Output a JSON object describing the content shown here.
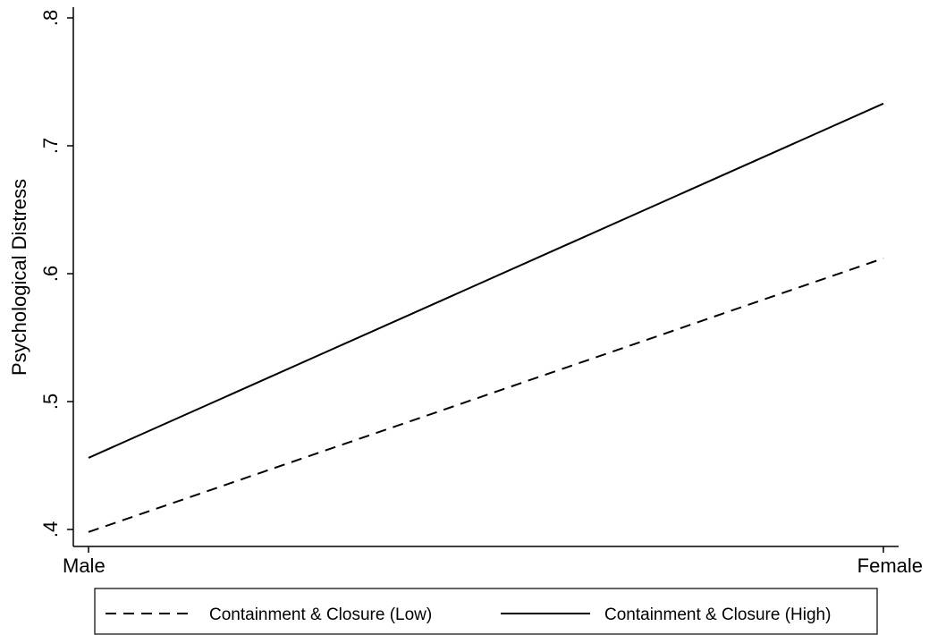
{
  "chart_data": {
    "type": "line",
    "title": "",
    "xlabel": "",
    "ylabel": "Psychological Distress",
    "categories": [
      "Male",
      "Female"
    ],
    "ylim": [
      0.4,
      0.8
    ],
    "yticks": [
      0.4,
      0.5,
      0.6,
      0.7,
      0.8
    ],
    "ytick_labels": [
      ".4",
      ".5",
      ".6",
      ".7",
      ".8"
    ],
    "grid": false,
    "legend_position": "bottom",
    "series": [
      {
        "name": "Containment & Closure (Low)",
        "values": [
          0.398,
          0.612
        ],
        "style": "dashed",
        "color": "#000000"
      },
      {
        "name": "Containment & Closure (High)",
        "values": [
          0.456,
          0.733
        ],
        "style": "solid",
        "color": "#000000"
      }
    ]
  }
}
